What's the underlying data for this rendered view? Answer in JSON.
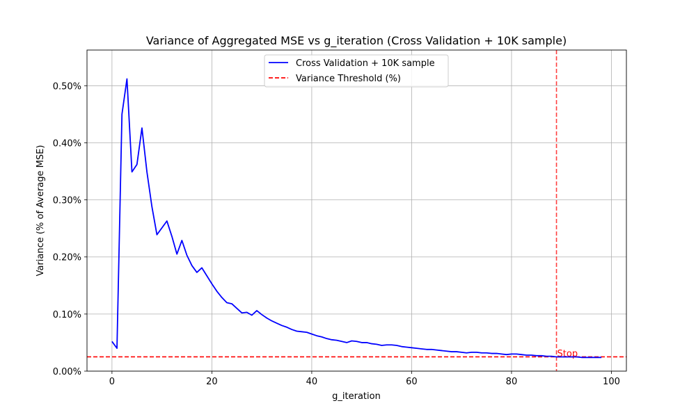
{
  "chart_data": {
    "type": "line",
    "title": "Variance of Aggregated MSE vs g_iteration (Cross Validation + 10K sample)",
    "xlabel": "g_iteration",
    "ylabel": "Variance (% of Average MSE)",
    "xlim": [
      -5,
      103
    ],
    "ylim": [
      0,
      0.5625
    ],
    "x_ticks": [
      0,
      20,
      40,
      60,
      80,
      100
    ],
    "x_tick_labels": [
      "0",
      "20",
      "40",
      "60",
      "80",
      "100"
    ],
    "y_ticks": [
      0,
      0.1,
      0.2,
      0.3,
      0.4,
      0.5
    ],
    "y_tick_labels": [
      "0.00%",
      "0.10%",
      "0.20%",
      "0.30%",
      "0.40%",
      "0.50%"
    ],
    "grid": true,
    "legend_position": "upper center",
    "series": [
      {
        "name": "Cross Validation + 10K sample",
        "color": "#0000ff",
        "style": "solid",
        "x": [
          0,
          1,
          2,
          3,
          4,
          5,
          6,
          7,
          8,
          9,
          10,
          11,
          12,
          13,
          14,
          15,
          16,
          17,
          18,
          19,
          20,
          21,
          22,
          23,
          24,
          25,
          26,
          27,
          28,
          29,
          30,
          31,
          32,
          33,
          34,
          35,
          36,
          37,
          38,
          39,
          40,
          41,
          42,
          43,
          44,
          45,
          46,
          47,
          48,
          49,
          50,
          51,
          52,
          53,
          54,
          55,
          56,
          57,
          58,
          59,
          60,
          61,
          62,
          63,
          64,
          65,
          66,
          67,
          68,
          69,
          70,
          71,
          72,
          73,
          74,
          75,
          76,
          77,
          78,
          79,
          80,
          81,
          82,
          83,
          84,
          85,
          86,
          87,
          88,
          89,
          90,
          91,
          92,
          93,
          94,
          95,
          96,
          97,
          98
        ],
        "values": [
          0.052,
          0.04,
          0.45,
          0.512,
          0.349,
          0.362,
          0.426,
          0.349,
          0.288,
          0.239,
          0.251,
          0.263,
          0.236,
          0.205,
          0.229,
          0.203,
          0.185,
          0.173,
          0.181,
          0.167,
          0.153,
          0.14,
          0.129,
          0.12,
          0.118,
          0.11,
          0.102,
          0.103,
          0.098,
          0.106,
          0.099,
          0.093,
          0.088,
          0.084,
          0.08,
          0.077,
          0.073,
          0.07,
          0.069,
          0.068,
          0.065,
          0.062,
          0.06,
          0.057,
          0.055,
          0.054,
          0.052,
          0.05,
          0.053,
          0.052,
          0.05,
          0.05,
          0.048,
          0.047,
          0.045,
          0.046,
          0.046,
          0.045,
          0.043,
          0.042,
          0.041,
          0.04,
          0.039,
          0.038,
          0.038,
          0.037,
          0.036,
          0.035,
          0.034,
          0.034,
          0.033,
          0.032,
          0.033,
          0.033,
          0.032,
          0.032,
          0.031,
          0.031,
          0.03,
          0.029,
          0.03,
          0.03,
          0.029,
          0.028,
          0.028,
          0.027,
          0.027,
          0.026,
          0.026,
          0.025,
          0.025,
          0.025,
          0.025,
          0.025,
          0.024,
          0.024,
          0.024,
          0.024,
          0.024
        ]
      }
    ],
    "threshold": {
      "name": "Variance Threshold (%)",
      "value": 0.025,
      "color": "#ff0000",
      "style": "dashed"
    },
    "stop_line": {
      "x": 89,
      "label": "Stop",
      "color": "#ff0000",
      "style": "dashed"
    }
  }
}
